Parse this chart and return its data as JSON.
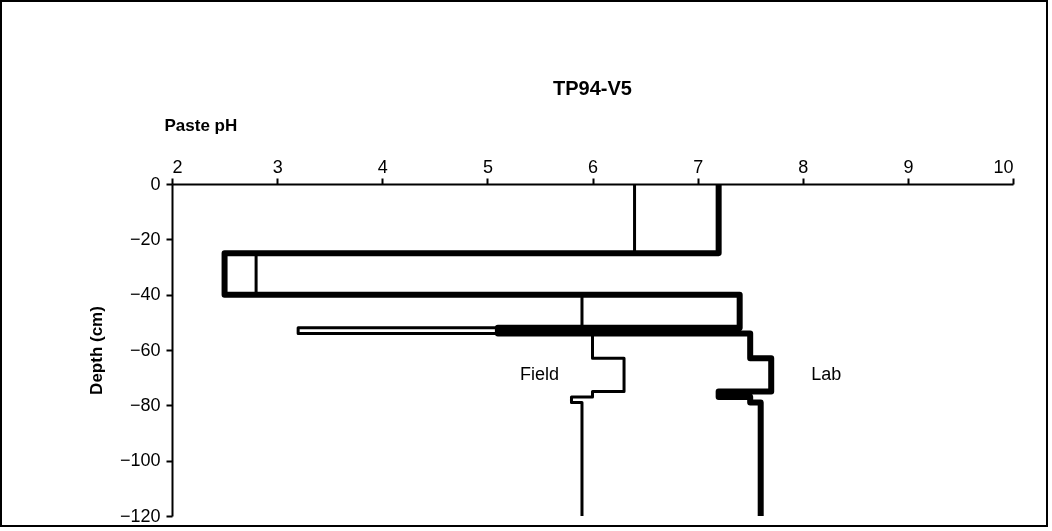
{
  "chart_data": {
    "type": "line",
    "title": "TP94-V5",
    "xlabel": "Paste pH",
    "ylabel": "Depth (cm)",
    "xlim": [
      2,
      10
    ],
    "xticks": [
      2,
      3,
      4,
      5,
      6,
      7,
      8,
      9,
      10
    ],
    "ylim": [
      -120,
      0
    ],
    "yticks": [
      -120,
      -100,
      -80,
      -60,
      -40,
      -20,
      0
    ],
    "grid": false,
    "marker": "none",
    "line_style": "solid",
    "series": [
      {
        "name": "Field",
        "color": "#000000",
        "x": [
          6.4,
          6.4,
          2.8,
          2.8,
          5.9,
          5.9,
          3.2,
          3.2,
          6.0,
          6.0,
          6.3,
          6.3,
          6.0,
          6.0,
          5.8,
          5.8,
          5.9,
          5.9
        ],
        "values": [
          0,
          -25,
          -25,
          -40,
          -40,
          -52,
          -52,
          -54,
          -54,
          -63,
          -63,
          -75,
          -75,
          -77,
          -77,
          -79,
          -79,
          -120
        ]
      },
      {
        "name": "Lab",
        "color": "#000000",
        "x": [
          7.2,
          7.2,
          2.5,
          2.5,
          7.4,
          7.4,
          5.1,
          5.1,
          7.5,
          7.5,
          7.7,
          7.7,
          7.2,
          7.2,
          7.5,
          7.5,
          7.6,
          7.6
        ],
        "values": [
          0,
          -25,
          -25,
          -40,
          -40,
          -52,
          -52,
          -54,
          -54,
          -63,
          -63,
          -75,
          -75,
          -77,
          -77,
          -79,
          -79,
          -120
        ]
      }
    ]
  }
}
